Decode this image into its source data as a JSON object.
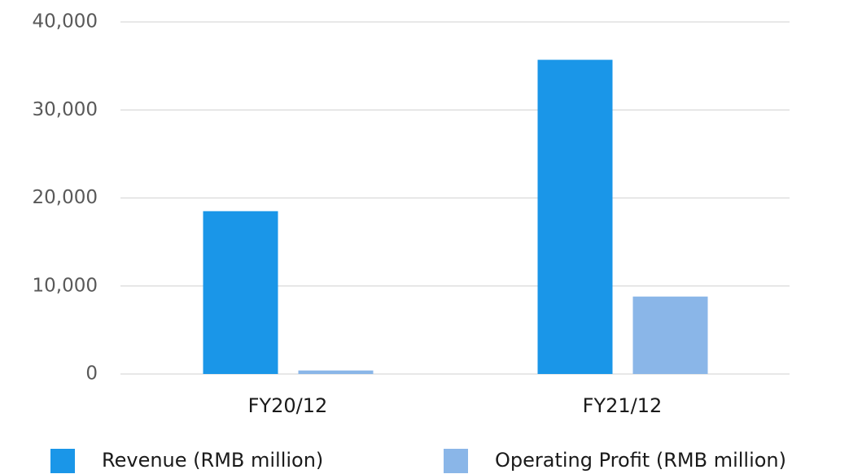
{
  "chart_data": {
    "type": "bar",
    "categories": [
      "FY20/12",
      "FY21/12"
    ],
    "series": [
      {
        "name": "Revenue (RMB million)",
        "color": "#1a96e8",
        "values": [
          18500,
          35700
        ]
      },
      {
        "name": "Operating Profit (RMB million)",
        "color": "#8ab6e8",
        "values": [
          400,
          8800
        ]
      }
    ],
    "ylim": [
      0,
      40000
    ],
    "yticks": [
      0,
      {
        "value": 10000,
        "label": "10,000"
      },
      {
        "value": 20000,
        "label": "20,000"
      },
      {
        "value": 30000,
        "label": "30,000"
      },
      {
        "value": 40000,
        "label": "40,000"
      }
    ],
    "grid": true
  }
}
